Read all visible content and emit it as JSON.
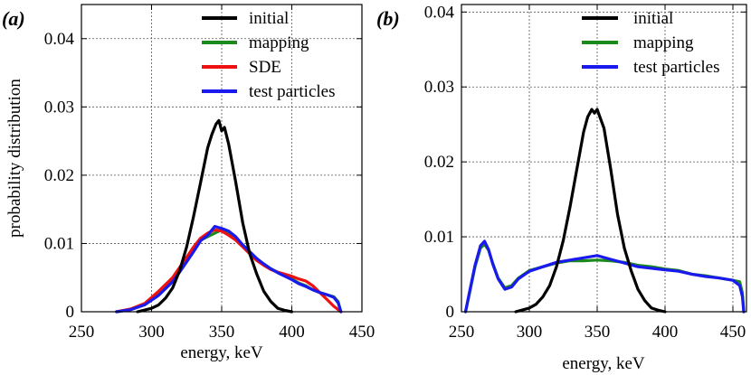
{
  "chart_data": [
    {
      "panel_label": "(a)",
      "type": "line",
      "xlabel": "energy, keV",
      "ylabel": "probability distribution",
      "xlim": [
        250,
        450
      ],
      "ylim": [
        0,
        0.045
      ],
      "xticks": [
        250,
        300,
        350,
        400,
        450
      ],
      "yticks": [
        0,
        0.01,
        0.02,
        0.03,
        0.04
      ],
      "ytick_labels": [
        "0",
        "0.01",
        "0.02",
        "0.03",
        "0.04"
      ],
      "grid": true,
      "legend_position": "top-right",
      "series": [
        {
          "name": "initial",
          "color": "#000000",
          "x": [
            290,
            300,
            305,
            310,
            315,
            320,
            325,
            330,
            335,
            340,
            343,
            346,
            348,
            350,
            352,
            355,
            360,
            365,
            370,
            375,
            380,
            385,
            390,
            395,
            400
          ],
          "y": [
            0,
            0.0005,
            0.001,
            0.002,
            0.0035,
            0.006,
            0.0095,
            0.014,
            0.019,
            0.024,
            0.026,
            0.0275,
            0.028,
            0.0265,
            0.027,
            0.0245,
            0.019,
            0.013,
            0.0085,
            0.0055,
            0.003,
            0.0015,
            0.0005,
            0.0002,
            0
          ]
        },
        {
          "name": "mapping",
          "color": "#1a8a1a",
          "x": [
            275,
            285,
            295,
            305,
            315,
            320,
            325,
            330,
            335,
            340,
            345,
            350,
            355,
            360,
            365,
            370,
            375,
            380,
            385,
            390,
            395,
            400,
            405,
            410,
            415,
            420,
            425,
            430,
            433,
            435
          ],
          "y": [
            0,
            0.0003,
            0.001,
            0.0025,
            0.0045,
            0.006,
            0.0075,
            0.009,
            0.0105,
            0.011,
            0.0115,
            0.012,
            0.0115,
            0.0108,
            0.0098,
            0.0088,
            0.0078,
            0.007,
            0.0063,
            0.0058,
            0.0053,
            0.0048,
            0.0042,
            0.0038,
            0.0032,
            0.0028,
            0.0025,
            0.0022,
            0.0015,
            0
          ]
        },
        {
          "name": "SDE",
          "color": "#ee1111",
          "x": [
            275,
            285,
            295,
            305,
            315,
            320,
            325,
            330,
            335,
            340,
            345,
            350,
            355,
            360,
            365,
            370,
            375,
            380,
            385,
            390,
            395,
            400,
            405,
            410,
            415,
            420,
            425,
            430,
            435
          ],
          "y": [
            0,
            0.0004,
            0.0012,
            0.003,
            0.005,
            0.0065,
            0.008,
            0.0095,
            0.0108,
            0.0115,
            0.012,
            0.0118,
            0.0112,
            0.0105,
            0.0095,
            0.0085,
            0.0075,
            0.0068,
            0.0062,
            0.0058,
            0.0055,
            0.0052,
            0.0048,
            0.0045,
            0.0038,
            0.0028,
            0.0018,
            0.0008,
            0
          ]
        },
        {
          "name": "test particles",
          "color": "#1a1aee",
          "x": [
            275,
            285,
            295,
            305,
            315,
            320,
            325,
            330,
            335,
            340,
            345,
            350,
            355,
            360,
            365,
            370,
            375,
            380,
            385,
            390,
            395,
            400,
            405,
            410,
            415,
            420,
            425,
            430,
            433,
            435
          ],
          "y": [
            0,
            0.0003,
            0.001,
            0.0024,
            0.0044,
            0.0058,
            0.0073,
            0.0088,
            0.0104,
            0.0112,
            0.0125,
            0.0122,
            0.0118,
            0.011,
            0.0098,
            0.0088,
            0.0078,
            0.007,
            0.0063,
            0.0057,
            0.0052,
            0.0047,
            0.0041,
            0.0037,
            0.0032,
            0.0028,
            0.0025,
            0.0021,
            0.0013,
            0
          ]
        }
      ]
    },
    {
      "panel_label": "(b)",
      "type": "line",
      "xlabel": "energy, keV",
      "ylabel": "",
      "xlim": [
        250,
        460
      ],
      "ylim": [
        0,
        0.041
      ],
      "xticks": [
        250,
        300,
        350,
        400,
        450
      ],
      "yticks": [
        0,
        0.01,
        0.02,
        0.03,
        0.04
      ],
      "ytick_labels": [
        "0",
        "0.01",
        "0.02",
        "0.03",
        "0.04"
      ],
      "grid": true,
      "legend_position": "top-right",
      "series": [
        {
          "name": "initial",
          "color": "#000000",
          "x": [
            290,
            300,
            305,
            310,
            315,
            320,
            325,
            330,
            335,
            340,
            343,
            346,
            348,
            350,
            352,
            355,
            360,
            365,
            370,
            375,
            380,
            385,
            390,
            395,
            400
          ],
          "y": [
            0,
            0.0005,
            0.001,
            0.002,
            0.0035,
            0.006,
            0.0095,
            0.014,
            0.019,
            0.024,
            0.026,
            0.027,
            0.0265,
            0.027,
            0.026,
            0.0245,
            0.019,
            0.013,
            0.0085,
            0.0055,
            0.003,
            0.0015,
            0.0005,
            0.0002,
            0
          ]
        },
        {
          "name": "mapping",
          "color": "#1a8a1a",
          "x": [
            253,
            256,
            260,
            264,
            267,
            270,
            273,
            277,
            282,
            287,
            292,
            300,
            310,
            320,
            330,
            340,
            350,
            360,
            370,
            380,
            390,
            400,
            410,
            420,
            430,
            440,
            450,
            455,
            457,
            458
          ],
          "y": [
            0,
            0.0025,
            0.006,
            0.0085,
            0.009,
            0.0082,
            0.0065,
            0.0045,
            0.0032,
            0.0035,
            0.0045,
            0.0055,
            0.006,
            0.0065,
            0.0068,
            0.0068,
            0.0069,
            0.0068,
            0.0066,
            0.0062,
            0.006,
            0.0057,
            0.0055,
            0.005,
            0.0048,
            0.0045,
            0.0042,
            0.004,
            0.0025,
            0
          ]
        },
        {
          "name": "test particles",
          "color": "#1a1aee",
          "x": [
            253,
            256,
            260,
            264,
            267,
            270,
            273,
            277,
            282,
            287,
            292,
            300,
            310,
            320,
            330,
            340,
            350,
            360,
            370,
            380,
            390,
            400,
            410,
            420,
            430,
            440,
            450,
            455,
            457,
            458
          ],
          "y": [
            0,
            0.0027,
            0.0062,
            0.0088,
            0.0094,
            0.0083,
            0.0064,
            0.0044,
            0.003,
            0.0033,
            0.0044,
            0.0054,
            0.006,
            0.0066,
            0.0069,
            0.0072,
            0.0075,
            0.007,
            0.0065,
            0.006,
            0.0058,
            0.0056,
            0.0054,
            0.005,
            0.0047,
            0.0045,
            0.0042,
            0.0035,
            0.002,
            0
          ]
        }
      ]
    }
  ]
}
